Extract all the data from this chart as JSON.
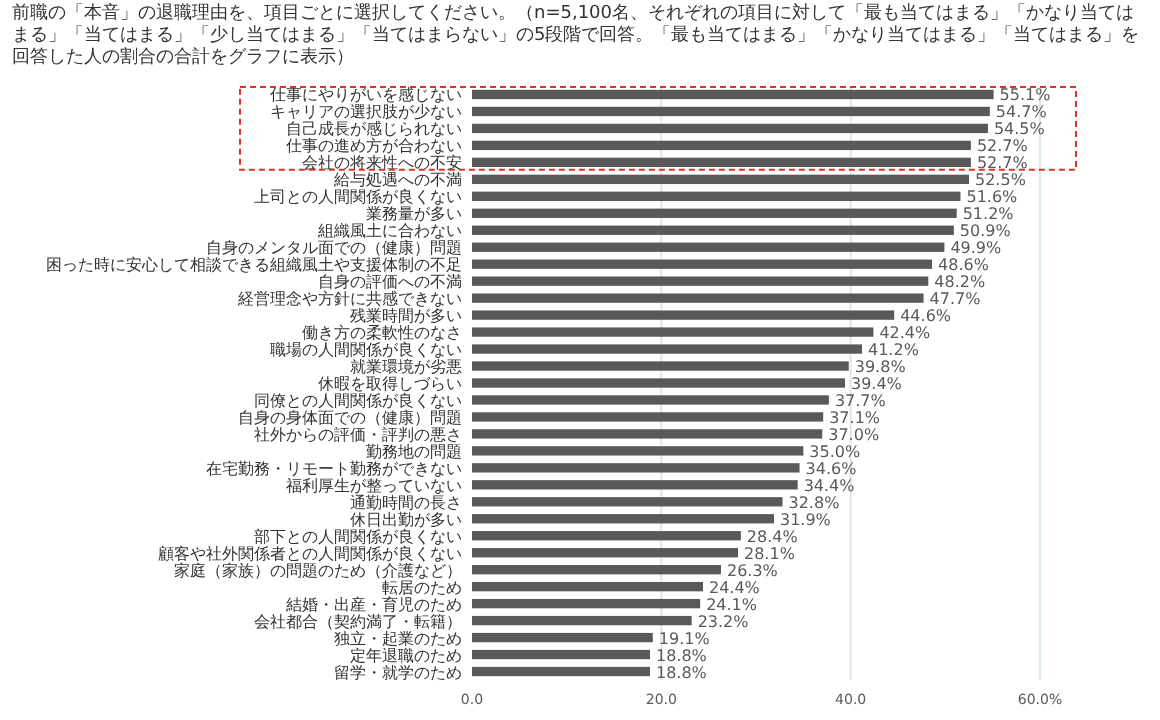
{
  "chart_data": {
    "type": "bar",
    "orientation": "horizontal",
    "title": "前職の「本音」の退職理由を、項目ごとに選択してください。（n=5,100名、それぞれの項目に対して「最も当てはまる」「かなり当てはまる」「当てはまる」「少し当てはまる」「当てはまらない」の5段階で回答。「最も当てはまる」「かなり当てはまる」「当てはまる」を回答した人の割合の合計をグラフに表示）",
    "categories": [
      "仕事にやりがいを感じない",
      "キャリアの選択肢が少ない",
      "自己成長が感じられない",
      "仕事の進め方が合わない",
      "会社の将来性への不安",
      "給与処遇への不満",
      "上司との人間関係が良くない",
      "業務量が多い",
      "組織風土に合わない",
      "自身のメンタル面での（健康）問題",
      "困った時に安心して相談できる組織風土や支援体制の不足",
      "自身の評価への不満",
      "経営理念や方針に共感できない",
      "残業時間が多い",
      "働き方の柔軟性のなさ",
      "職場の人間関係が良くない",
      "就業環境が劣悪",
      "休暇を取得しづらい",
      "同僚との人間関係が良くない",
      "自身の身体面での（健康）問題",
      "社外からの評価・評判の悪さ",
      "勤務地の問題",
      "在宅勤務・リモート勤務ができない",
      "福利厚生が整っていない",
      "通勤時間の長さ",
      "休日出勤が多い",
      "部下との人間関係が良くない",
      "顧客や社外関係者との人間関係が良くない",
      "家庭（家族）の問題のため（介護など）",
      "転居のため",
      "結婚・出産・育児のため",
      "会社都合（契約満了・転籍）",
      "独立・起業のため",
      "定年退職のため",
      "留学・就学のため"
    ],
    "values": [
      55.1,
      54.7,
      54.5,
      52.7,
      52.7,
      52.5,
      51.6,
      51.2,
      50.9,
      49.9,
      48.6,
      48.2,
      47.7,
      44.6,
      42.4,
      41.2,
      39.8,
      39.4,
      37.7,
      37.1,
      37.0,
      35.0,
      34.6,
      34.4,
      32.8,
      31.9,
      28.4,
      28.1,
      26.3,
      24.4,
      24.1,
      23.2,
      19.1,
      18.8,
      18.8
    ],
    "value_labels": [
      "55.1%",
      "54.7%",
      "54.5%",
      "52.7%",
      "52.7%",
      "52.5%",
      "51.6%",
      "51.2%",
      "50.9%",
      "49.9%",
      "48.6%",
      "48.2%",
      "47.7%",
      "44.6%",
      "42.4%",
      "41.2%",
      "39.8%",
      "39.4%",
      "37.7%",
      "37.1%",
      "37.0%",
      "35.0%",
      "34.6%",
      "34.4%",
      "32.8%",
      "31.9%",
      "28.4%",
      "28.1%",
      "26.3%",
      "24.4%",
      "24.1%",
      "23.2%",
      "19.1%",
      "18.8%",
      "18.8%"
    ],
    "color": "#595959",
    "xlim": [
      0,
      60
    ],
    "xticks": [
      {
        "value": 0,
        "label": "0.0"
      },
      {
        "value": 20,
        "label": "20.0"
      },
      {
        "value": 40,
        "label": "40.0"
      },
      {
        "value": 60,
        "label": "60.0%"
      }
    ],
    "grid": "x"
  }
}
